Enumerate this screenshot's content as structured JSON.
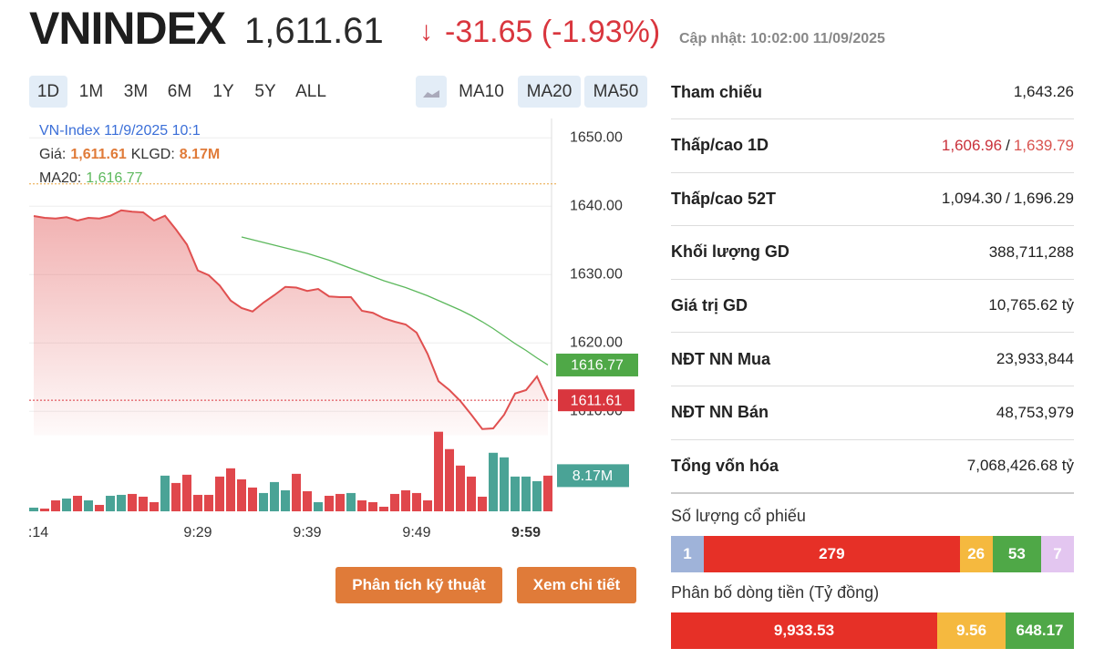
{
  "header": {
    "title": "VNINDEX",
    "price": "1,611.61",
    "arrow": "↓",
    "change": "-31.65",
    "change_pct": "(-1.93%)",
    "updated": "Cập nhật: 10:02:00 11/09/2025"
  },
  "ranges": [
    "1D",
    "1M",
    "3M",
    "6M",
    "1Y",
    "5Y",
    "ALL"
  ],
  "indicators": [
    "MA10",
    "MA20",
    "MA50"
  ],
  "chart": {
    "tooltip": {
      "title": "VN-Index 11/9/2025 10:1",
      "price_label": "Giá:",
      "price": "1,611.61",
      "volume_label": "KLGD:",
      "volume": "8.17M",
      "ma_label": "MA20:",
      "ma": "1,616.77"
    },
    "categories": [
      ":14",
      null,
      null,
      null,
      null,
      null,
      null,
      null,
      null,
      null,
      null,
      null,
      null,
      null,
      null,
      "9:29",
      null,
      null,
      null,
      null,
      null,
      null,
      null,
      null,
      null,
      "9:39",
      null,
      null,
      null,
      null,
      null,
      null,
      null,
      null,
      null,
      "9:49",
      null,
      null,
      null,
      null,
      null,
      null,
      null,
      null,
      null,
      "9:59",
      null,
      null
    ],
    "ylim": [
      1606.5,
      1651.5
    ],
    "yticks": [
      {
        "value": 1650,
        "label": "1650.00"
      },
      {
        "value": 1640,
        "label": "1640.00"
      },
      {
        "value": 1630,
        "label": "1630.00"
      },
      {
        "value": 1620,
        "label": "1620.00"
      },
      {
        "value": 1610,
        "label": "1610.00"
      }
    ],
    "reference": 1643.26,
    "price": {
      "color": "#e05050",
      "values": [
        1638.57,
        1638.3,
        1638.2,
        1638.4,
        1637.9,
        1638.3,
        1638.2,
        1638.6,
        1639.4,
        1639.2,
        1639.1,
        1637.9,
        1638.6,
        1636.6,
        1634.4,
        1630.6,
        1629.9,
        1628.4,
        1626.2,
        1625.1,
        1624.6,
        1625.9,
        1627.0,
        1628.2,
        1628.1,
        1627.6,
        1627.9,
        1626.8,
        1626.7,
        1626.7,
        1624.7,
        1624.4,
        1623.6,
        1623.1,
        1622.7,
        1621.5,
        1618.4,
        1614.4,
        1613.1,
        1611.5,
        1609.5,
        1607.4,
        1607.5,
        1609.5,
        1612.6,
        1613.1,
        1615.1,
        1611.61
      ]
    },
    "ma20": {
      "color": "#5cb85c",
      "values": [
        null,
        null,
        null,
        null,
        null,
        null,
        null,
        null,
        null,
        null,
        null,
        null,
        null,
        null,
        null,
        null,
        null,
        null,
        null,
        1635.5,
        1635.1,
        1634.7,
        1634.3,
        1633.9,
        1633.5,
        1633.1,
        1632.6,
        1632.1,
        1631.5,
        1630.9,
        1630.3,
        1629.7,
        1629.1,
        1628.6,
        1628.1,
        1627.5,
        1626.9,
        1626.2,
        1625.5,
        1624.8,
        1624.0,
        1623.1,
        1622.1,
        1621.0,
        1619.9,
        1618.9,
        1617.8,
        1616.77
      ]
    },
    "volume": {
      "ylim": [
        0,
        19
      ],
      "up_color": "#4aa396",
      "down_color": "#e0474c",
      "values": [
        0.84,
        0.63,
        2.51,
        2.93,
        3.56,
        2.51,
        1.47,
        3.56,
        3.77,
        3.98,
        3.35,
        2.1,
        8.17,
        6.49,
        8.38,
        3.77,
        3.77,
        7.96,
        9.85,
        7.33,
        5.45,
        4.19,
        6.7,
        4.82,
        8.59,
        4.61,
        2.1,
        3.56,
        3.98,
        4.19,
        2.51,
        2.1,
        1.05,
        3.98,
        4.82,
        4.19,
        2.51,
        18.23,
        14.25,
        10.48,
        7.96,
        3.35,
        13.41,
        12.36,
        7.96,
        7.96,
        6.91,
        8.17
      ]
    }
  },
  "buttons": [
    "Phân tích kỹ thuật",
    "Xem chi tiết"
  ],
  "stats": [
    {
      "label": "Tham chiếu",
      "values": [
        "1,643.26"
      ]
    },
    {
      "label": "Thấp/cao 1D",
      "values": [
        "1,606.96",
        "1,639.79"
      ],
      "sep": "/",
      "colors": [
        "#c9303a",
        "#d9534f"
      ]
    },
    {
      "label": "Thấp/cao 52T",
      "values": [
        "1,094.30",
        "1,696.29"
      ],
      "sep": "/"
    },
    {
      "label": "Khối lượng GD",
      "values": [
        "388,711,288"
      ]
    },
    {
      "label": "Giá trị GD",
      "values": [
        "10,765.62 tỷ"
      ]
    },
    {
      "label": "NĐT NN Mua",
      "values": [
        "23,933,844"
      ]
    },
    {
      "label": "NĐT NN Bán",
      "values": [
        "48,753,979"
      ]
    },
    {
      "label": "Tổng vốn hóa",
      "values": [
        "7,068,426.68 tỷ"
      ]
    }
  ],
  "share_count": {
    "title": "Số lượng cổ phiếu",
    "segments": [
      {
        "value": 1,
        "color": "#9fb3d9"
      },
      {
        "value": 279,
        "color": "#e63027"
      },
      {
        "value": 26,
        "color": "#f5b93f"
      },
      {
        "value": 53,
        "color": "#4fa847"
      },
      {
        "value": 7,
        "color": "#e3c6f0"
      }
    ]
  },
  "cash_flow": {
    "title": "Phân bố dòng tiền (Tỷ đồng)",
    "segments": [
      {
        "value": 9933.53,
        "label": "9,933.53",
        "color": "#e63027"
      },
      {
        "value": 9.56,
        "label": "9.56",
        "color": "#f5b93f"
      },
      {
        "value": 648.17,
        "label": "648.17",
        "color": "#4fa847"
      }
    ]
  }
}
